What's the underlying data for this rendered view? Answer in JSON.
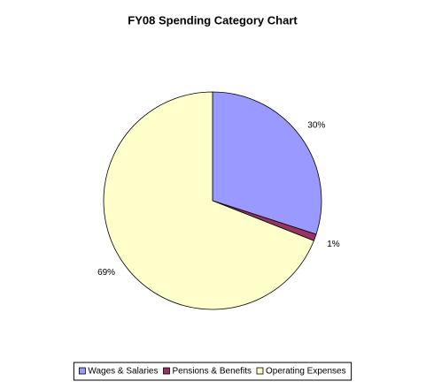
{
  "chart_data": {
    "type": "pie",
    "title": "FY08 Spending Category Chart",
    "categories": [
      "Wages & Salaries",
      "Pensions & Benefits",
      "Operating Expenses"
    ],
    "values": [
      30,
      1,
      69
    ],
    "value_labels": [
      "30%",
      "1%",
      "69%"
    ],
    "colors": [
      "#9999ff",
      "#993366",
      "#ffffcc"
    ],
    "legend": "bottom"
  }
}
